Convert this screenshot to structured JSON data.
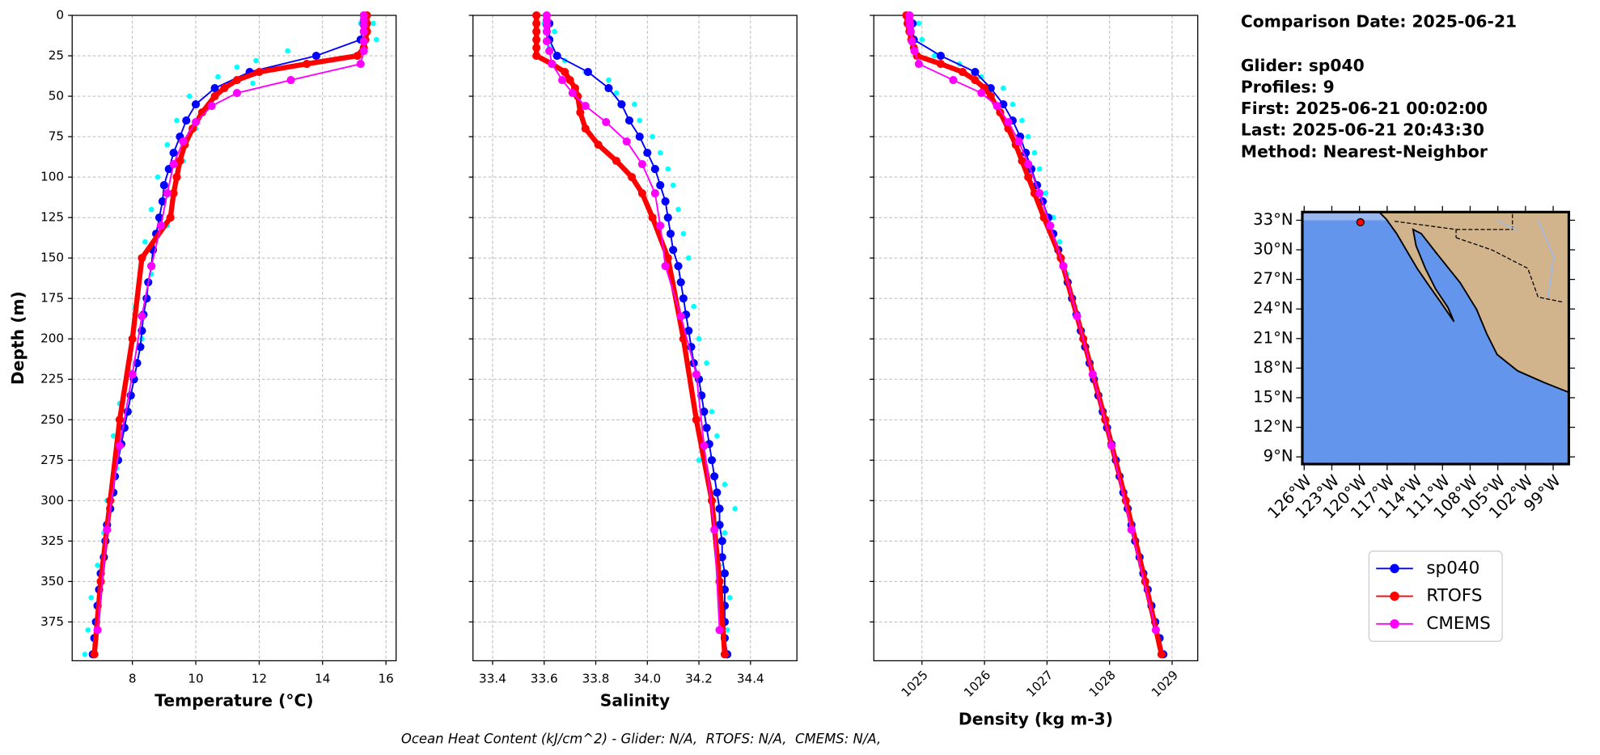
{
  "chart_data": [
    {
      "type": "line",
      "xlabel": "Temperature (°C)",
      "ylabel": "Depth (m)",
      "xlim": [
        6.1,
        16.32
      ],
      "ylim": [
        399,
        0
      ],
      "xticks": [
        8,
        10,
        12,
        14,
        16
      ],
      "yticks": [
        0,
        25,
        50,
        75,
        100,
        125,
        150,
        175,
        200,
        225,
        250,
        275,
        300,
        325,
        350,
        375
      ],
      "ytick_labels": true,
      "grid": true,
      "series": [
        {
          "color": "#00ffff",
          "mode": "markers",
          "y": [
            5,
            5,
            10,
            15,
            20,
            22,
            28,
            32,
            38,
            42,
            50,
            55,
            65,
            70,
            80,
            90,
            100,
            110,
            120,
            130,
            140,
            160,
            180,
            200,
            220,
            240,
            260,
            280,
            300,
            320,
            340,
            360,
            380,
            395
          ],
          "x": [
            15.2,
            15.6,
            15.4,
            15.7,
            15.3,
            12.9,
            11.9,
            11.3,
            10.7,
            11.8,
            9.8,
            10.4,
            9.4,
            10.0,
            9.1,
            9.6,
            8.8,
            9.3,
            8.6,
            9.1,
            8.4,
            8.6,
            8.1,
            8.3,
            7.9,
            7.6,
            7.4,
            7.5,
            7.2,
            7.1,
            6.9,
            6.7,
            6.6,
            6.5
          ]
        },
        {
          "name": "sp040",
          "color": "#0000ff",
          "mode": "lines+markers",
          "linewidth": 1.5,
          "y": [
            5,
            15,
            25,
            35,
            45,
            55,
            65,
            75,
            85,
            95,
            105,
            115,
            125,
            135,
            145,
            155,
            165,
            175,
            185,
            195,
            205,
            215,
            225,
            235,
            245,
            255,
            265,
            275,
            285,
            295,
            305,
            315,
            325,
            335,
            345,
            355,
            365,
            375,
            385,
            395
          ],
          "x": [
            15.3,
            15.2,
            13.8,
            11.7,
            10.6,
            10.0,
            9.7,
            9.5,
            9.3,
            9.15,
            9.0,
            8.95,
            8.85,
            8.75,
            8.65,
            8.6,
            8.5,
            8.45,
            8.35,
            8.3,
            8.25,
            8.15,
            8.05,
            7.95,
            7.85,
            7.75,
            7.65,
            7.55,
            7.45,
            7.4,
            7.3,
            7.2,
            7.15,
            7.1,
            7.0,
            6.95,
            6.9,
            6.85,
            6.8,
            6.75
          ]
        },
        {
          "name": "RTOFS",
          "color": "#ff0000",
          "mode": "lines+markers",
          "linewidth": 5,
          "y": [
            0,
            5,
            10,
            15,
            20,
            25,
            30,
            35,
            40,
            45,
            50,
            60,
            70,
            80,
            90,
            100,
            110,
            125,
            150,
            200,
            250,
            300,
            350,
            395
          ],
          "x": [
            15.4,
            15.4,
            15.4,
            15.35,
            15.3,
            15.1,
            13.5,
            12.0,
            11.3,
            10.9,
            10.6,
            10.2,
            9.9,
            9.65,
            9.5,
            9.4,
            9.3,
            9.2,
            8.3,
            8.0,
            7.6,
            7.3,
            7.0,
            6.8
          ]
        },
        {
          "name": "CMEMS",
          "color": "#ff00ff",
          "mode": "lines+markers",
          "linewidth": 1.5,
          "y": [
            0,
            3,
            6,
            10,
            16,
            22,
            30,
            40,
            48,
            56,
            66,
            78,
            92,
            110,
            130,
            155,
            186,
            222,
            266,
            318,
            380
          ],
          "x": [
            15.3,
            15.3,
            15.3,
            15.3,
            15.3,
            15.3,
            15.2,
            13.0,
            11.3,
            10.5,
            10.0,
            9.6,
            9.3,
            9.1,
            8.9,
            8.6,
            8.3,
            8.0,
            7.6,
            7.2,
            6.9
          ]
        }
      ]
    },
    {
      "type": "line",
      "xlabel": "Salinity",
      "xlim": [
        33.324,
        34.58
      ],
      "ylim": [
        399,
        0
      ],
      "xticks": [
        33.4,
        33.6,
        33.8,
        {
          "value": 34,
          "label": "34.0"
        },
        34.2,
        34.4
      ],
      "yticks": [
        0,
        25,
        50,
        75,
        100,
        125,
        150,
        175,
        200,
        225,
        250,
        275,
        300,
        325,
        350,
        375
      ],
      "ytick_labels": false,
      "grid": true,
      "series": [
        {
          "color": "#00ffff",
          "mode": "markers",
          "y": [
            5,
            10,
            20,
            28,
            35,
            40,
            48,
            55,
            65,
            75,
            85,
            95,
            105,
            120,
            135,
            150,
            165,
            180,
            200,
            215,
            230,
            245,
            260,
            275,
            290,
            305,
            320,
            340,
            360,
            380,
            395
          ],
          "x": [
            33.6,
            33.64,
            33.62,
            33.68,
            33.76,
            33.85,
            33.88,
            33.95,
            33.97,
            34.02,
            34.05,
            34.08,
            34.1,
            34.12,
            34.14,
            34.16,
            34.1,
            34.18,
            34.2,
            34.23,
            34.17,
            34.25,
            34.27,
            34.2,
            34.3,
            34.34,
            34.3,
            34.28,
            34.32,
            34.31,
            34.3
          ]
        },
        {
          "name": "sp040",
          "color": "#0000ff",
          "mode": "lines+markers",
          "linewidth": 1.5,
          "y": [
            5,
            15,
            25,
            35,
            45,
            55,
            65,
            75,
            85,
            95,
            105,
            115,
            125,
            135,
            145,
            155,
            165,
            175,
            185,
            195,
            205,
            215,
            225,
            235,
            245,
            255,
            265,
            275,
            285,
            295,
            305,
            315,
            325,
            335,
            345,
            355,
            365,
            375,
            385,
            395
          ],
          "x": [
            33.62,
            33.62,
            33.65,
            33.77,
            33.85,
            33.9,
            33.93,
            33.97,
            34.0,
            34.03,
            34.05,
            34.07,
            34.08,
            34.09,
            34.1,
            34.12,
            34.13,
            34.14,
            34.15,
            34.16,
            34.17,
            34.18,
            34.2,
            34.21,
            34.22,
            34.23,
            34.24,
            34.25,
            34.26,
            34.27,
            34.28,
            34.28,
            34.29,
            34.29,
            34.3,
            34.3,
            34.3,
            34.3,
            34.3,
            34.31
          ]
        },
        {
          "name": "RTOFS",
          "color": "#ff0000",
          "mode": "lines+markers",
          "linewidth": 5,
          "y": [
            0,
            5,
            10,
            15,
            20,
            25,
            30,
            35,
            40,
            45,
            50,
            60,
            70,
            80,
            90,
            100,
            110,
            125,
            150,
            200,
            250,
            300,
            350,
            395
          ],
          "x": [
            33.57,
            33.57,
            33.57,
            33.57,
            33.57,
            33.57,
            33.63,
            33.68,
            33.7,
            33.72,
            33.73,
            33.74,
            33.76,
            33.81,
            33.88,
            33.94,
            33.98,
            34.02,
            34.08,
            34.14,
            34.19,
            34.25,
            34.28,
            34.3
          ]
        },
        {
          "name": "CMEMS",
          "color": "#ff00ff",
          "mode": "lines+markers",
          "linewidth": 1.5,
          "y": [
            0,
            3,
            6,
            10,
            16,
            22,
            30,
            40,
            48,
            56,
            66,
            78,
            92,
            110,
            130,
            155,
            186,
            222,
            266,
            318,
            380
          ],
          "x": [
            33.61,
            33.61,
            33.61,
            33.61,
            33.61,
            33.62,
            33.63,
            33.67,
            33.71,
            33.76,
            33.84,
            33.92,
            33.98,
            34.03,
            34.05,
            34.07,
            34.13,
            34.19,
            34.22,
            34.26,
            34.28
          ]
        }
      ]
    },
    {
      "type": "line",
      "xlabel": "Density (kg m-3)",
      "xlim": [
        1024.23,
        1029.41
      ],
      "ylim": [
        399,
        0
      ],
      "xtick_rotation": 45,
      "xticks": [
        1025,
        1026,
        1027,
        1028,
        1029
      ],
      "yticks": [
        0,
        25,
        50,
        75,
        100,
        125,
        150,
        175,
        200,
        225,
        250,
        275,
        300,
        325,
        350,
        375
      ],
      "ytick_labels": false,
      "grid": true,
      "series": [
        {
          "color": "#00ffff",
          "mode": "markers",
          "y": [
            5,
            15,
            25,
            30,
            38,
            45,
            55,
            65,
            75,
            85,
            95,
            110,
            125,
            140,
            160,
            180,
            200,
            220,
            240,
            260,
            280,
            300,
            320,
            340,
            360,
            380,
            395
          ],
          "x": [
            1024.95,
            1025.0,
            1025.2,
            1025.6,
            1025.95,
            1026.3,
            1026.45,
            1026.6,
            1026.7,
            1026.8,
            1026.88,
            1026.98,
            1027.1,
            1027.2,
            1027.32,
            1027.45,
            1027.6,
            1027.72,
            1027.86,
            1028.0,
            1028.13,
            1028.26,
            1028.38,
            1028.5,
            1028.63,
            1028.76,
            1028.85
          ]
        },
        {
          "name": "sp040",
          "color": "#0000ff",
          "mode": "lines+markers",
          "linewidth": 1.5,
          "y": [
            5,
            15,
            25,
            35,
            45,
            55,
            65,
            75,
            85,
            95,
            105,
            115,
            125,
            135,
            145,
            155,
            165,
            175,
            185,
            195,
            205,
            215,
            225,
            235,
            245,
            255,
            265,
            275,
            285,
            295,
            305,
            315,
            325,
            335,
            345,
            355,
            365,
            375,
            385,
            395
          ],
          "x": [
            1024.85,
            1024.87,
            1025.3,
            1025.85,
            1026.1,
            1026.3,
            1026.45,
            1026.57,
            1026.66,
            1026.75,
            1026.84,
            1026.93,
            1027.02,
            1027.1,
            1027.18,
            1027.26,
            1027.33,
            1027.4,
            1027.47,
            1027.54,
            1027.61,
            1027.68,
            1027.75,
            1027.82,
            1027.89,
            1027.96,
            1028.03,
            1028.1,
            1028.16,
            1028.22,
            1028.29,
            1028.35,
            1028.41,
            1028.48,
            1028.54,
            1028.61,
            1028.67,
            1028.73,
            1028.8,
            1028.86
          ]
        },
        {
          "name": "RTOFS",
          "color": "#ff0000",
          "mode": "lines+markers",
          "linewidth": 5,
          "y": [
            0,
            5,
            10,
            15,
            20,
            25,
            30,
            35,
            40,
            45,
            50,
            60,
            70,
            80,
            90,
            100,
            110,
            125,
            150,
            200,
            250,
            300,
            350,
            395
          ],
          "x": [
            1024.75,
            1024.77,
            1024.8,
            1024.83,
            1024.87,
            1024.92,
            1025.3,
            1025.65,
            1025.85,
            1026.0,
            1026.1,
            1026.25,
            1026.38,
            1026.5,
            1026.6,
            1026.7,
            1026.8,
            1026.95,
            1027.22,
            1027.58,
            1027.93,
            1028.26,
            1028.57,
            1028.83
          ]
        },
        {
          "name": "CMEMS",
          "color": "#ff00ff",
          "mode": "lines+markers",
          "linewidth": 1.5,
          "y": [
            0,
            3,
            6,
            10,
            16,
            22,
            30,
            40,
            48,
            56,
            66,
            78,
            92,
            110,
            130,
            155,
            186,
            222,
            266,
            318,
            380
          ],
          "x": [
            1024.8,
            1024.8,
            1024.81,
            1024.82,
            1024.84,
            1024.88,
            1024.95,
            1025.5,
            1025.95,
            1026.2,
            1026.38,
            1026.55,
            1026.7,
            1026.88,
            1027.05,
            1027.26,
            1027.48,
            1027.73,
            1028.03,
            1028.35,
            1028.74
          ]
        }
      ]
    },
    {
      "type": "map",
      "xlim": [
        -126.2,
        -97.3
      ],
      "ylim": [
        8.27,
        33.83
      ],
      "xticks": [
        {
          "value": -126,
          "label": "126°W"
        },
        {
          "value": -123,
          "label": "123°W"
        },
        {
          "value": -120,
          "label": "120°W"
        },
        {
          "value": -117,
          "label": "117°W"
        },
        {
          "value": -114,
          "label": "114°W"
        },
        {
          "value": -111,
          "label": "111°W"
        },
        {
          "value": -108,
          "label": "108°W"
        },
        {
          "value": -105,
          "label": "105°W"
        },
        {
          "value": -102,
          "label": "102°W"
        },
        {
          "value": -99,
          "label": "99°W"
        }
      ],
      "yticks": [
        {
          "value": 33,
          "label": "33°N"
        },
        {
          "value": 30,
          "label": "30°N"
        },
        {
          "value": 27,
          "label": "27°N"
        },
        {
          "value": 24,
          "label": "24°N"
        },
        {
          "value": 21,
          "label": "21°N"
        },
        {
          "value": 18,
          "label": "18°N"
        },
        {
          "value": 15,
          "label": "15°N"
        },
        {
          "value": 12,
          "label": "12°N"
        },
        {
          "value": 9,
          "label": "9°N"
        }
      ],
      "points": {
        "color": "#ff0000",
        "x": [
          -119.9
        ],
        "y": [
          32.8
        ]
      }
    }
  ],
  "info": [
    "Comparison Date: 2025-06-21",
    "Glider: sp040",
    "Profiles: 9",
    "First: 2025-06-21 00:02:00",
    "Last: 2025-06-21 20:43:30",
    "Method: Nearest-Neighbor"
  ],
  "footnote": "Ocean Heat Content (kJ/cm^2) - Glider: N/A,  RTOFS: N/A,  CMEMS: N/A,"
}
